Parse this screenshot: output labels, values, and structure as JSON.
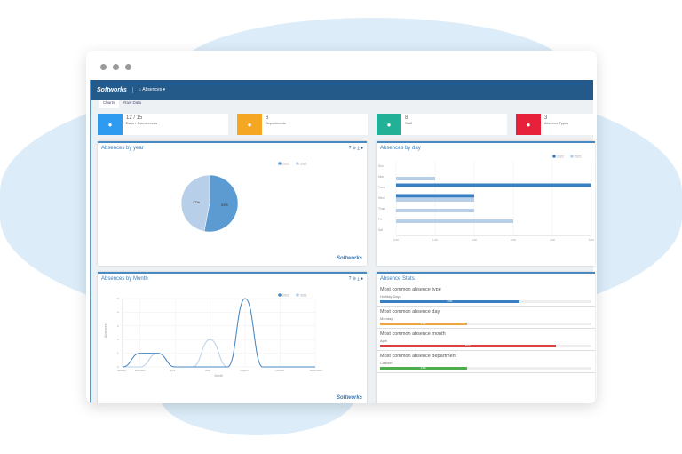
{
  "nav": {
    "logo": "Softworks",
    "menu": "Absences ▾"
  },
  "tabs": [
    {
      "label": "Charts",
      "active": true
    },
    {
      "label": "Raw Data"
    }
  ],
  "cards": [
    {
      "value": "12 / 15",
      "label": "Days / Occurrences",
      "color": "#2e9af0",
      "icon": "user-x-icon"
    },
    {
      "value": "6",
      "label": "Departments",
      "color": "#f5a623",
      "icon": "sitemap-icon"
    },
    {
      "value": "8",
      "label": "Staff",
      "color": "#22b197",
      "icon": "users-icon"
    },
    {
      "value": "3",
      "label": "Absence Types",
      "color": "#e8213a",
      "icon": "clock-icon"
    }
  ],
  "panels": {
    "year": "Absences by year",
    "day": "Absences by day",
    "month": "Absences by Month",
    "stats": "Absence Stats",
    "tools": "? ⊖ ⤓ ●",
    "watermark": "Softworks"
  },
  "legend": [
    "2022",
    "2021"
  ],
  "chart_data": [
    {
      "type": "pie",
      "title": "Absences by year",
      "slices": [
        {
          "name": "2022",
          "value": 53,
          "label": "53%",
          "color": "#5b9bd1"
        },
        {
          "name": "2021",
          "value": 47,
          "label": "47%",
          "color": "#b8cfea"
        }
      ]
    },
    {
      "type": "bar",
      "orientation": "horizontal",
      "title": "Absences by day",
      "categories": [
        "Sun",
        "Mon",
        "Tues",
        "Wed",
        "Thurs",
        "Fri",
        "Sat"
      ],
      "series": [
        {
          "name": "2022",
          "values": [
            0,
            0,
            5,
            2,
            0,
            0,
            0
          ],
          "color": "#3a7fc1"
        },
        {
          "name": "2021",
          "values": [
            0,
            1,
            0,
            2,
            2,
            3,
            0
          ],
          "color": "#b8cfea"
        }
      ],
      "xticks": [
        "0.00",
        "1.00",
        "2.00",
        "3.00",
        "4.00",
        "5.00"
      ],
      "xlim": [
        0,
        5
      ],
      "legend": "top-right"
    },
    {
      "type": "line",
      "title": "Absences by Month",
      "xlabel": "Month",
      "ylabel": "Absences",
      "categories": [
        "January",
        "February",
        "March",
        "April",
        "May",
        "June",
        "July",
        "August",
        "September",
        "October",
        "November",
        "December"
      ],
      "xticks": [
        "January",
        "February",
        "April",
        "June",
        "August",
        "October",
        "December"
      ],
      "yticks": [
        "0",
        "1",
        "2",
        "3",
        "4",
        "5"
      ],
      "ylim": [
        0,
        5
      ],
      "series": [
        {
          "name": "2022",
          "values": [
            0,
            1,
            1,
            0,
            0,
            0,
            0,
            5,
            0,
            0,
            0,
            0
          ],
          "color": "#4a88c0"
        },
        {
          "name": "2021",
          "values": [
            0,
            0,
            1,
            0,
            0,
            2,
            0,
            5,
            0,
            0,
            0,
            0
          ],
          "color": "#b8cfea"
        }
      ],
      "legend": "top-right"
    }
  ],
  "stats": [
    {
      "title": "Most common absence type",
      "value": "Holiday Days",
      "percent": 66,
      "label": "66%",
      "color": "#3a7fc1"
    },
    {
      "title": "Most common absence day",
      "value": "Monday",
      "percent": 41,
      "label": "41%",
      "color": "#f0a640"
    },
    {
      "title": "Most common absence month",
      "value": "April",
      "percent": 83,
      "label": "83%",
      "color": "#d9403f"
    },
    {
      "title": "Most common absence department",
      "value": "Cashier",
      "percent": 41,
      "label": "41%",
      "color": "#4cae4c"
    }
  ]
}
